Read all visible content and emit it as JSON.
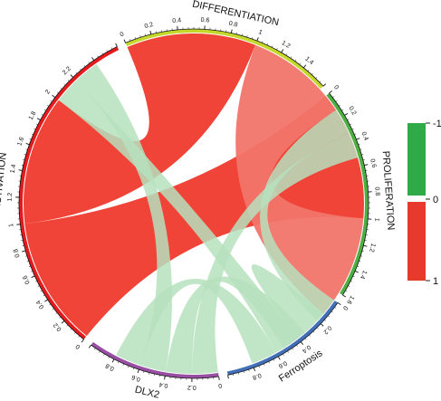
{
  "diagram": {
    "type": "chord",
    "sectors": [
      {
        "id": "differentiation",
        "label": "DIFFERENTIATION",
        "color": "#c3d82a",
        "max": 1.6,
        "step": 0.2,
        "labels": [
          "0",
          "0.2",
          "0.4",
          "0.6",
          "0.8",
          "1",
          "1.2",
          "1.4",
          ""
        ]
      },
      {
        "id": "proliferation",
        "label": "PROLIFERATION",
        "color": "#4caf41",
        "max": 1.6,
        "step": 0.2,
        "labels": [
          "0",
          "0.2",
          "0.4",
          "0.6",
          "0.8",
          "1",
          "1.2",
          "1.4",
          "1.6"
        ]
      },
      {
        "id": "ferroptosis",
        "label": "Ferroptosis",
        "color": "#4270b8",
        "max": 1.0,
        "step": 0.2,
        "labels": [
          "0",
          "0.2",
          "0.4",
          "0.6",
          "0.8",
          ""
        ]
      },
      {
        "id": "dlx2",
        "label": "DLX2",
        "color": "#984ea3",
        "max": 1.0,
        "step": 0.2,
        "labels": [
          "0",
          "0.2",
          "0.4",
          "0.6",
          "0.8",
          ""
        ]
      },
      {
        "id": "activation",
        "label": "ACTIVATION",
        "color": "#e41a1c",
        "max": 2.6,
        "step": 0.2,
        "labels": [
          "0",
          "0.2",
          "0.4",
          "0.6",
          "0.8",
          "1",
          "1.2",
          "1.4",
          "1.6",
          "1.8",
          "2",
          "2.2",
          ""
        ]
      }
    ],
    "links": [
      {
        "from": "activation",
        "to": "proliferation",
        "value": -1.0,
        "color": "#ee3a2c"
      },
      {
        "from": "activation",
        "to": "differentiation",
        "value": -1.0,
        "color": "#ee3a2c"
      },
      {
        "from": "differentiation",
        "to": "proliferation",
        "value": -0.8,
        "color": "#f2756a"
      },
      {
        "from": "differentiation",
        "to": "ferroptosis",
        "value": 0.2,
        "color": "#b6e0bd"
      },
      {
        "from": "differentiation",
        "to": "dlx2",
        "value": 0.2,
        "color": "#b6e0bd"
      },
      {
        "from": "proliferation",
        "to": "ferroptosis",
        "value": 0.2,
        "color": "#b6e0bd"
      },
      {
        "from": "proliferation",
        "to": "dlx2",
        "value": 0.2,
        "color": "#b6e0bd"
      },
      {
        "from": "activation",
        "to": "ferroptosis",
        "value": 0.2,
        "color": "#b6e0bd"
      },
      {
        "from": "activation",
        "to": "dlx2",
        "value": 0.2,
        "color": "#b6e0bd"
      },
      {
        "from": "ferroptosis",
        "to": "dlx2",
        "value": 0.2,
        "color": "#b6e0bd"
      }
    ]
  },
  "legend": {
    "labels": [
      "-1",
      "0",
      "1"
    ],
    "colors": {
      "negative": "#2eaa4a",
      "positive": "#e53a2c",
      "zero": "#ffffff"
    }
  }
}
